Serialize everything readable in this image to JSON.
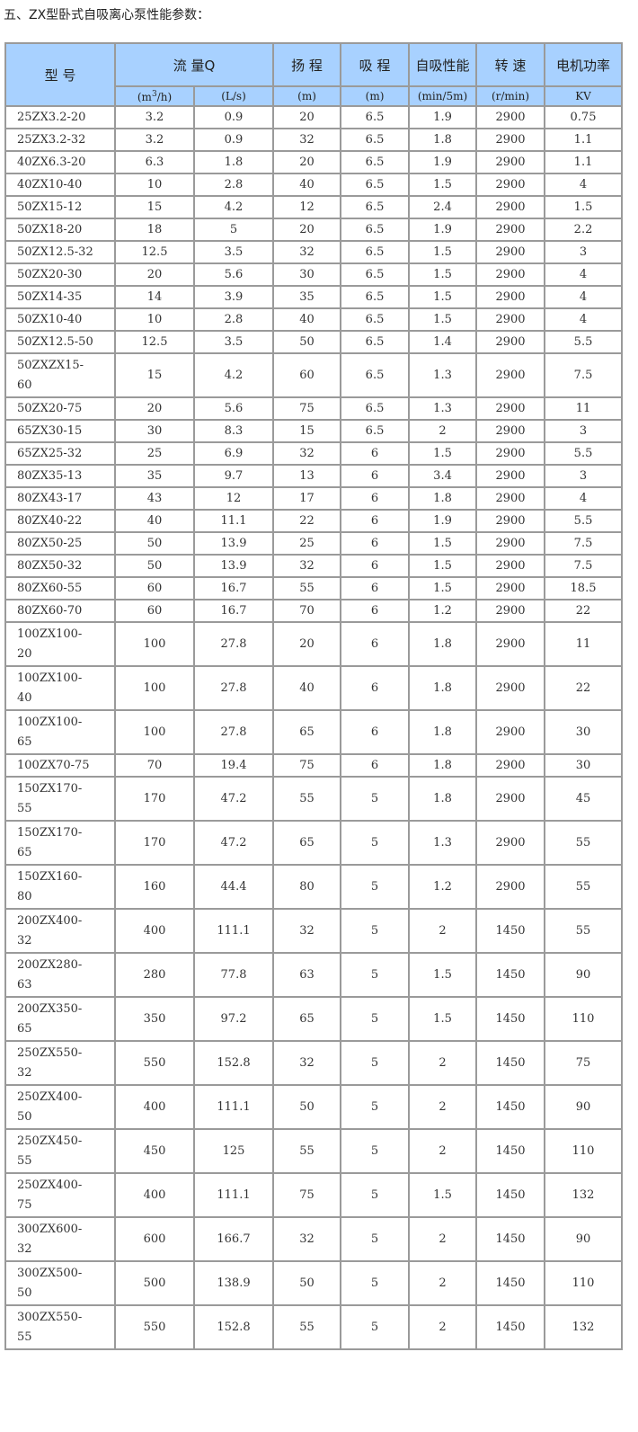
{
  "title": "五、ZX型卧式自吸离心泵性能参数：",
  "header": {
    "model": "型 号",
    "flow": "流 量Q",
    "head": "扬 程",
    "suction": "吸 程",
    "self_priming": "自吸性能",
    "speed": "转 速",
    "power": "电机功率",
    "units": [
      "(m3/h)",
      "(L/s)",
      "(m)",
      "(m)",
      "(min/5m)",
      "(r/min)",
      "KV"
    ]
  },
  "rows": [
    [
      "25ZX3.2-20",
      "3.2",
      "0.9",
      "20",
      "6.5",
      "1.9",
      "2900",
      "0.75"
    ],
    [
      "25ZX3.2-32",
      "3.2",
      "0.9",
      "32",
      "6.5",
      "1.8",
      "2900",
      "1.1"
    ],
    [
      "40ZX6.3-20",
      "6.3",
      "1.8",
      "20",
      "6.5",
      "1.9",
      "2900",
      "1.1"
    ],
    [
      "40ZX10-40",
      "10",
      "2.8",
      "40",
      "6.5",
      "1.5",
      "2900",
      "4"
    ],
    [
      "50ZX15-12",
      "15",
      "4.2",
      "12",
      "6.5",
      "2.4",
      "2900",
      "1.5"
    ],
    [
      "50ZX18-20",
      "18",
      "5",
      "20",
      "6.5",
      "1.9",
      "2900",
      "2.2"
    ],
    [
      "50ZX12.5-32",
      "12.5",
      "3.5",
      "32",
      "6.5",
      "1.5",
      "2900",
      "3"
    ],
    [
      "50ZX20-30",
      "20",
      "5.6",
      "30",
      "6.5",
      "1.5",
      "2900",
      "4"
    ],
    [
      "50ZX14-35",
      "14",
      "3.9",
      "35",
      "6.5",
      "1.5",
      "2900",
      "4"
    ],
    [
      "50ZX10-40",
      "10",
      "2.8",
      "40",
      "6.5",
      "1.5",
      "2900",
      "4"
    ],
    [
      "50ZX12.5-50",
      "12.5",
      "3.5",
      "50",
      "6.5",
      "1.4",
      "2900",
      "5.5"
    ],
    [
      "50ZXZX15-60",
      "15",
      "4.2",
      "60",
      "6.5",
      "1.3",
      "2900",
      "7.5"
    ],
    [
      "50ZX20-75",
      "20",
      "5.6",
      "75",
      "6.5",
      "1.3",
      "2900",
      "11"
    ],
    [
      "65ZX30-15",
      "30",
      "8.3",
      "15",
      "6.5",
      "2",
      "2900",
      "3"
    ],
    [
      "65ZX25-32",
      "25",
      "6.9",
      "32",
      "6",
      "1.5",
      "2900",
      "5.5"
    ],
    [
      "80ZX35-13",
      "35",
      "9.7",
      "13",
      "6",
      "3.4",
      "2900",
      "3"
    ],
    [
      "80ZX43-17",
      "43",
      "12",
      "17",
      "6",
      "1.8",
      "2900",
      "4"
    ],
    [
      "80ZX40-22",
      "40",
      "11.1",
      "22",
      "6",
      "1.9",
      "2900",
      "5.5"
    ],
    [
      "80ZX50-25",
      "50",
      "13.9",
      "25",
      "6",
      "1.5",
      "2900",
      "7.5"
    ],
    [
      "80ZX50-32",
      "50",
      "13.9",
      "32",
      "6",
      "1.5",
      "2900",
      "7.5"
    ],
    [
      "80ZX60-55",
      "60",
      "16.7",
      "55",
      "6",
      "1.5",
      "2900",
      "18.5"
    ],
    [
      "80ZX60-70",
      "60",
      "16.7",
      "70",
      "6",
      "1.2",
      "2900",
      "22"
    ],
    [
      "100ZX100-20",
      "100",
      "27.8",
      "20",
      "6",
      "1.8",
      "2900",
      "11"
    ],
    [
      "100ZX100-40",
      "100",
      "27.8",
      "40",
      "6",
      "1.8",
      "2900",
      "22"
    ],
    [
      "100ZX100-65",
      "100",
      "27.8",
      "65",
      "6",
      "1.8",
      "2900",
      "30"
    ],
    [
      "100ZX70-75",
      "70",
      "19.4",
      "75",
      "6",
      "1.8",
      "2900",
      "30"
    ],
    [
      "150ZX170-55",
      "170",
      "47.2",
      "55",
      "5",
      "1.8",
      "2900",
      "45"
    ],
    [
      "150ZX170-65",
      "170",
      "47.2",
      "65",
      "5",
      "1.3",
      "2900",
      "55"
    ],
    [
      "150ZX160-80",
      "160",
      "44.4",
      "80",
      "5",
      "1.2",
      "2900",
      "55"
    ],
    [
      "200ZX400-32",
      "400",
      "111.1",
      "32",
      "5",
      "2",
      "1450",
      "55"
    ],
    [
      "200ZX280-63",
      "280",
      "77.8",
      "63",
      "5",
      "1.5",
      "1450",
      "90"
    ],
    [
      "200ZX350-65",
      "350",
      "97.2",
      "65",
      "5",
      "1.5",
      "1450",
      "110"
    ],
    [
      "250ZX550-32",
      "550",
      "152.8",
      "32",
      "5",
      "2",
      "1450",
      "75"
    ],
    [
      "250ZX400-50",
      "400",
      "111.1",
      "50",
      "5",
      "2",
      "1450",
      "90"
    ],
    [
      "250ZX450-55",
      "450",
      "125",
      "55",
      "5",
      "2",
      "1450",
      "110"
    ],
    [
      "250ZX400-75",
      "400",
      "111.1",
      "75",
      "5",
      "1.5",
      "1450",
      "132"
    ],
    [
      "300ZX600-32",
      "600",
      "166.7",
      "32",
      "5",
      "2",
      "1450",
      "90"
    ],
    [
      "300ZX500-50",
      "500",
      "138.9",
      "50",
      "5",
      "2",
      "1450",
      "110"
    ],
    [
      "300ZX550-55",
      "550",
      "152.8",
      "55",
      "5",
      "2",
      "1450",
      "132"
    ]
  ]
}
